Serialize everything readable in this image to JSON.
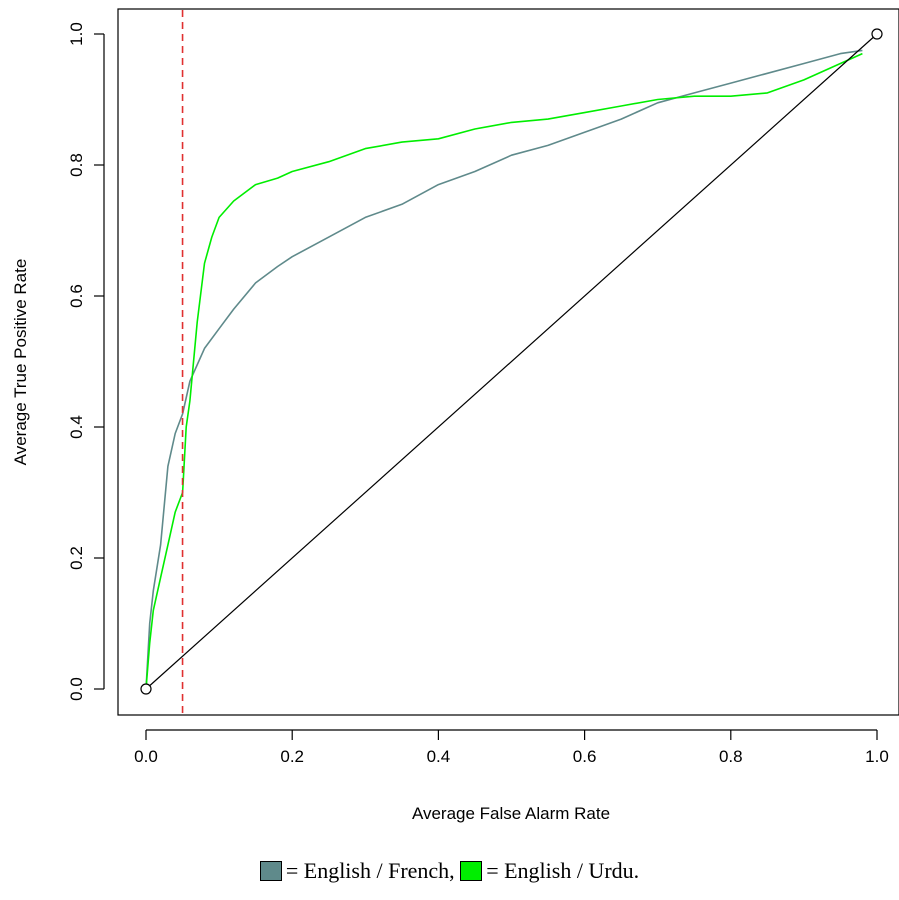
{
  "chart_data": {
    "type": "line",
    "title": "",
    "xlabel": "Average False Alarm Rate",
    "ylabel": "Average True Positive Rate",
    "xlim": [
      0,
      1
    ],
    "ylim": [
      0,
      1
    ],
    "xticks": [
      "0.0",
      "0.2",
      "0.4",
      "0.6",
      "0.8",
      "1.0"
    ],
    "yticks": [
      "0.0",
      "0.2",
      "0.4",
      "0.6",
      "0.8",
      "1.0"
    ],
    "grid": false,
    "series": [
      {
        "name": "English / French",
        "color": "#5f8a8b",
        "x": [
          0,
          0.005,
          0.01,
          0.02,
          0.03,
          0.04,
          0.05,
          0.06,
          0.08,
          0.1,
          0.12,
          0.15,
          0.18,
          0.2,
          0.25,
          0.3,
          0.35,
          0.4,
          0.45,
          0.5,
          0.55,
          0.6,
          0.65,
          0.7,
          0.75,
          0.8,
          0.85,
          0.9,
          0.95,
          0.98
        ],
        "y": [
          0,
          0.1,
          0.15,
          0.22,
          0.34,
          0.39,
          0.42,
          0.47,
          0.52,
          0.55,
          0.58,
          0.62,
          0.645,
          0.66,
          0.69,
          0.72,
          0.74,
          0.77,
          0.79,
          0.815,
          0.83,
          0.85,
          0.87,
          0.895,
          0.91,
          0.925,
          0.94,
          0.955,
          0.97,
          0.975
        ]
      },
      {
        "name": "English / Urdu",
        "color": "#00ee00",
        "x": [
          0,
          0.005,
          0.01,
          0.02,
          0.03,
          0.04,
          0.05,
          0.055,
          0.06,
          0.07,
          0.08,
          0.09,
          0.1,
          0.12,
          0.15,
          0.18,
          0.2,
          0.25,
          0.3,
          0.35,
          0.4,
          0.45,
          0.5,
          0.55,
          0.6,
          0.65,
          0.7,
          0.75,
          0.8,
          0.85,
          0.9,
          0.95,
          0.98
        ],
        "y": [
          0,
          0.07,
          0.12,
          0.17,
          0.22,
          0.27,
          0.3,
          0.4,
          0.44,
          0.56,
          0.65,
          0.69,
          0.72,
          0.745,
          0.77,
          0.78,
          0.79,
          0.805,
          0.825,
          0.835,
          0.84,
          0.855,
          0.865,
          0.87,
          0.88,
          0.89,
          0.9,
          0.905,
          0.905,
          0.91,
          0.93,
          0.955,
          0.97
        ]
      },
      {
        "name": "",
        "color": "#000000",
        "x": [
          0,
          1
        ],
        "y": [
          0,
          1
        ]
      }
    ],
    "threshold_line": {
      "x": 0.05,
      "color": "#e03030",
      "style": "dashed"
    },
    "legend_caption": {
      "text1": "= English / French,",
      "text2": "= English / Urdu."
    }
  }
}
